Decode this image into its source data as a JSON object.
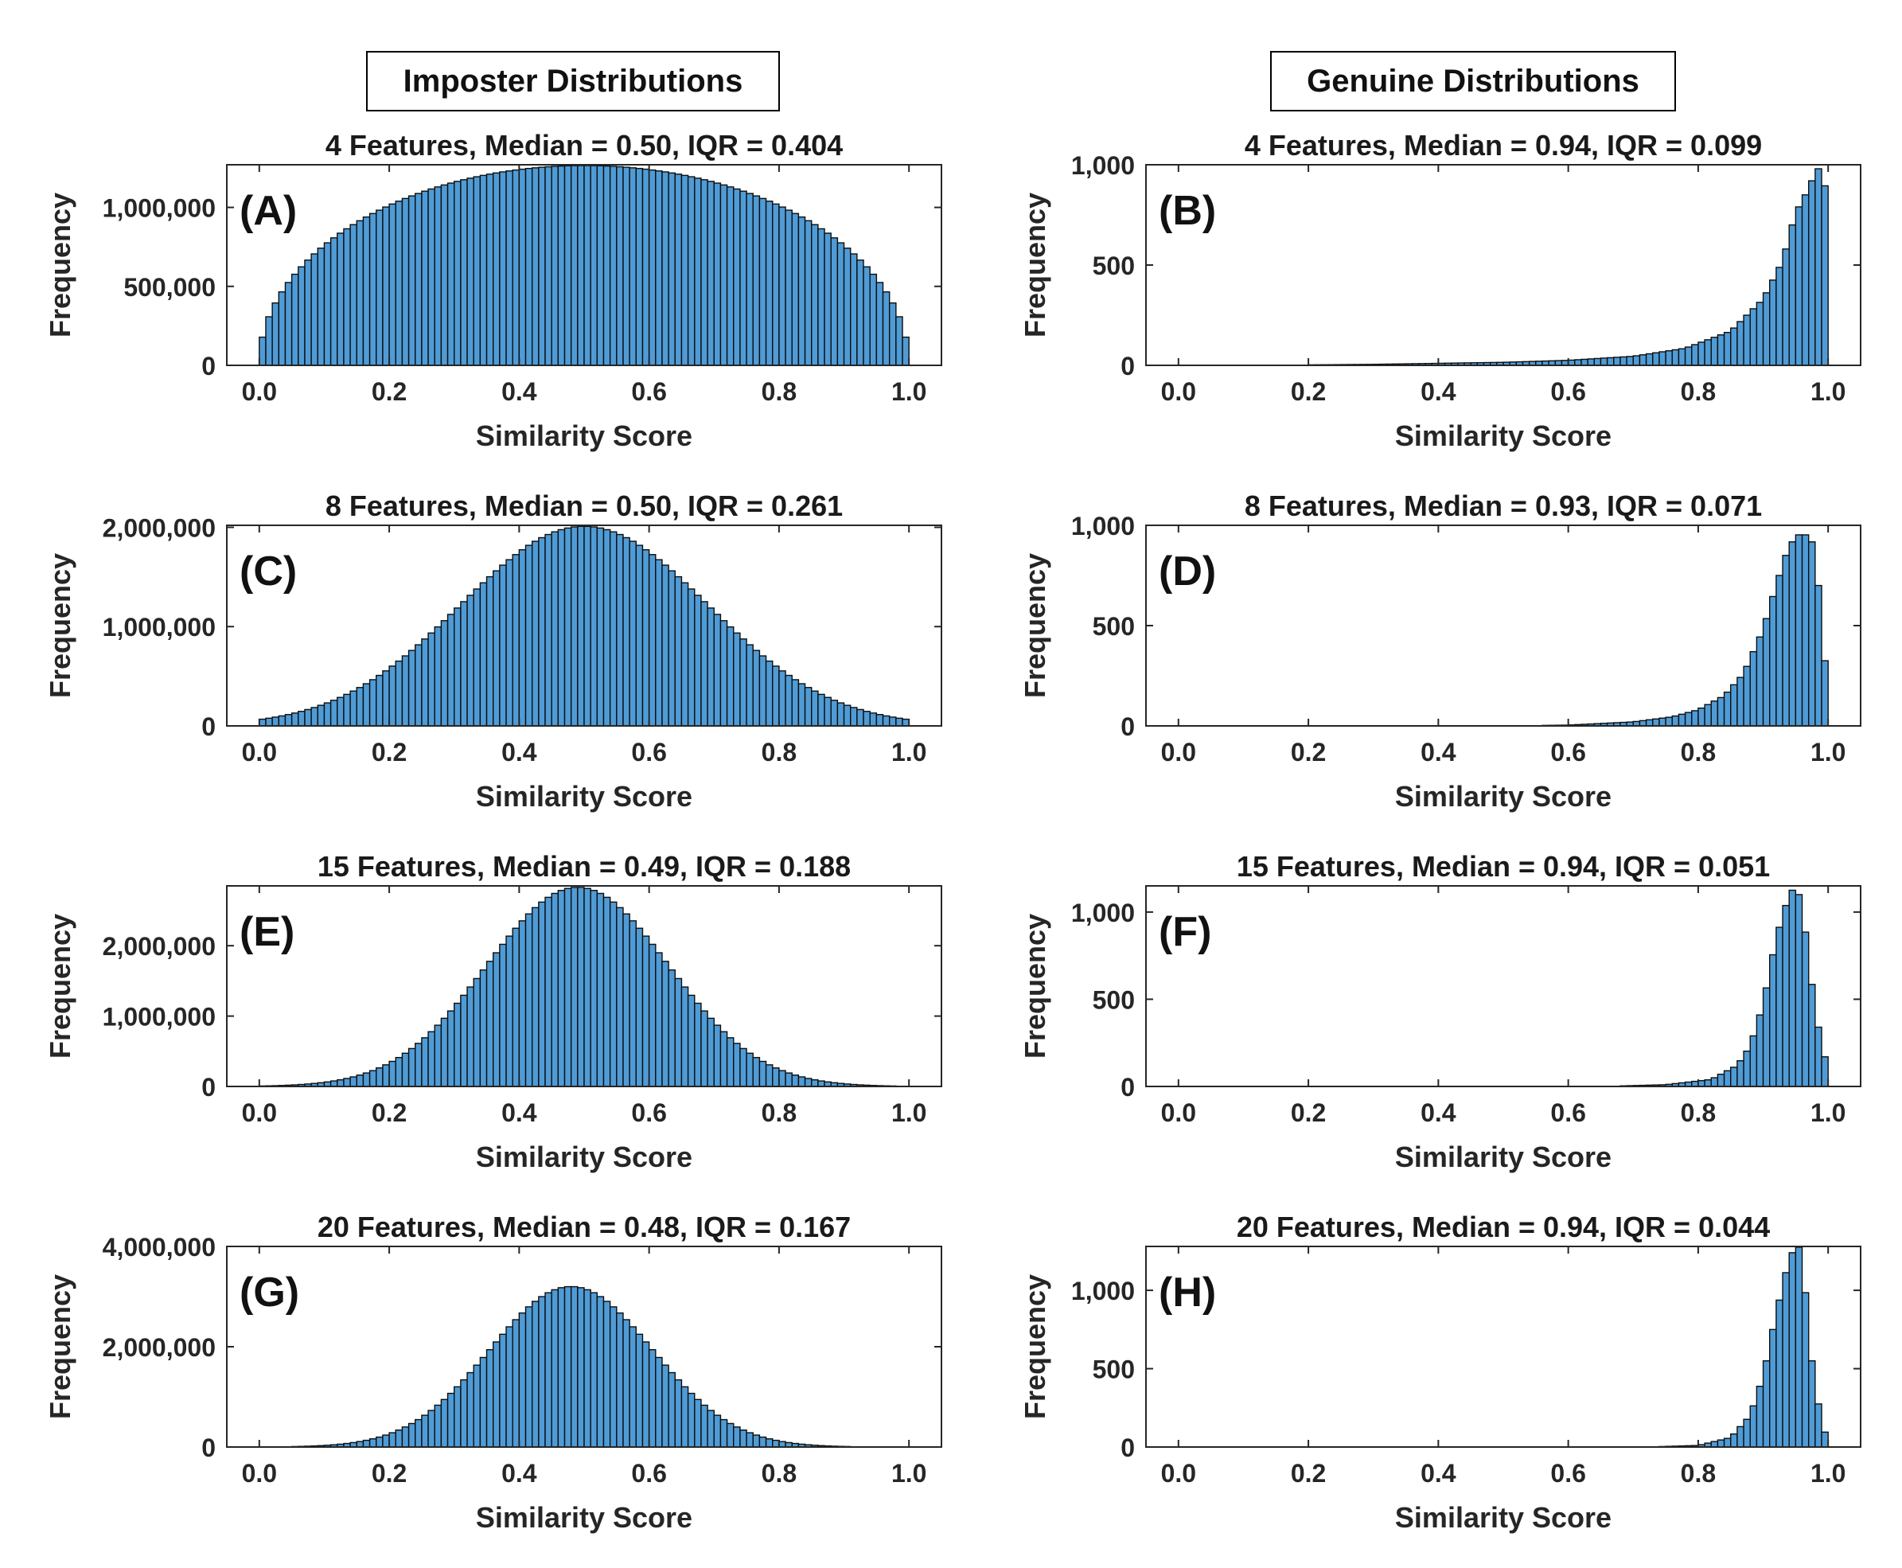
{
  "column_headers": {
    "left": "Imposter Distributions",
    "right": "Genuine Distributions"
  },
  "colors": {
    "bar_fill": "#4f9bd6",
    "bar_edge": "#0d0d0d",
    "axes": "#262626"
  },
  "chart_data": [
    {
      "type": "bar",
      "panel": "(A)",
      "column": "imposter",
      "title": "4 Features, Median = 0.50, IQR = 0.404",
      "xlabel": "Similarity Score",
      "ylabel": "Frequency",
      "xlim": [
        -0.05,
        1.05
      ],
      "ylim": [
        0,
        1270000
      ],
      "grid": false,
      "xticks": [
        0,
        0.2,
        0.4,
        0.6,
        0.8,
        1
      ],
      "xtick_labels": [
        "0.0",
        "0.2",
        "0.4",
        "0.6",
        "0.8",
        "1.0"
      ],
      "yticks": [
        0,
        500000,
        1000000
      ],
      "ytick_labels": [
        "0",
        "500,000",
        "1,000,000"
      ],
      "bins": {
        "start": 0.0,
        "end": 1.0,
        "count": 100
      },
      "shape": {
        "kind": "semicircle",
        "peak": 1265000
      }
    },
    {
      "type": "bar",
      "panel": "(B)",
      "column": "genuine",
      "title": "4 Features, Median = 0.94, IQR = 0.099",
      "xlabel": "Similarity Score",
      "ylabel": "Frequency",
      "xlim": [
        -0.05,
        1.05
      ],
      "ylim": [
        0,
        1000
      ],
      "grid": false,
      "xticks": [
        0,
        0.2,
        0.4,
        0.6,
        0.8,
        1
      ],
      "xtick_labels": [
        "0.0",
        "0.2",
        "0.4",
        "0.6",
        "0.8",
        "1.0"
      ],
      "yticks": [
        0,
        500,
        1000
      ],
      "ytick_labels": [
        "0",
        "500",
        "1,000"
      ],
      "bins": {
        "start": 0.0,
        "end": 1.0,
        "count": 100
      },
      "shape": {
        "kind": "tail",
        "points": [
          [
            0.15,
            1
          ],
          [
            0.3,
            5
          ],
          [
            0.5,
            15
          ],
          [
            0.6,
            25
          ],
          [
            0.7,
            45
          ],
          [
            0.78,
            85
          ],
          [
            0.85,
            170
          ],
          [
            0.9,
            330
          ],
          [
            0.93,
            520
          ],
          [
            0.95,
            760
          ],
          [
            0.97,
            880
          ],
          [
            0.98,
            960
          ],
          [
            0.99,
            1000
          ],
          [
            1.0,
            790
          ]
        ]
      }
    },
    {
      "type": "bar",
      "panel": "(C)",
      "column": "imposter",
      "title": "8 Features, Median = 0.50, IQR = 0.261",
      "xlabel": "Similarity Score",
      "ylabel": "Frequency",
      "xlim": [
        -0.05,
        1.05
      ],
      "ylim": [
        0,
        2020000
      ],
      "grid": false,
      "xticks": [
        0,
        0.2,
        0.4,
        0.6,
        0.8,
        1
      ],
      "xtick_labels": [
        "0.0",
        "0.2",
        "0.4",
        "0.6",
        "0.8",
        "1.0"
      ],
      "yticks": [
        0,
        1000000,
        2000000
      ],
      "ytick_labels": [
        "0",
        "1,000,000",
        "2,000,000"
      ],
      "bins": {
        "start": 0.0,
        "end": 1.0,
        "count": 100
      },
      "shape": {
        "kind": "gauss",
        "peak": 2010000,
        "mu": 0.5,
        "sigma": 0.19
      }
    },
    {
      "type": "bar",
      "panel": "(D)",
      "column": "genuine",
      "title": "8 Features, Median = 0.93, IQR = 0.071",
      "xlabel": "Similarity Score",
      "ylabel": "Frequency",
      "xlim": [
        -0.05,
        1.05
      ],
      "ylim": [
        0,
        1000
      ],
      "grid": false,
      "xticks": [
        0,
        0.2,
        0.4,
        0.6,
        0.8,
        1
      ],
      "xtick_labels": [
        "0.0",
        "0.2",
        "0.4",
        "0.6",
        "0.8",
        "1.0"
      ],
      "yticks": [
        0,
        500,
        1000
      ],
      "ytick_labels": [
        "0",
        "500",
        "1,000"
      ],
      "bins": {
        "start": 0.0,
        "end": 1.0,
        "count": 100
      },
      "shape": {
        "kind": "tail",
        "points": [
          [
            0.5,
            0
          ],
          [
            0.6,
            4
          ],
          [
            0.7,
            20
          ],
          [
            0.76,
            45
          ],
          [
            0.8,
            80
          ],
          [
            0.84,
            150
          ],
          [
            0.87,
            260
          ],
          [
            0.9,
            480
          ],
          [
            0.92,
            700
          ],
          [
            0.94,
            900
          ],
          [
            0.96,
            970
          ],
          [
            0.98,
            900
          ],
          [
            0.99,
            500
          ],
          [
            1.0,
            150
          ]
        ]
      }
    },
    {
      "type": "bar",
      "panel": "(E)",
      "column": "imposter",
      "title": "15 Features, Median = 0.49, IQR = 0.188",
      "xlabel": "Similarity Score",
      "ylabel": "Frequency",
      "xlim": [
        -0.05,
        1.05
      ],
      "ylim": [
        0,
        2850000
      ],
      "grid": false,
      "xticks": [
        0,
        0.2,
        0.4,
        0.6,
        0.8,
        1
      ],
      "xtick_labels": [
        "0.0",
        "0.2",
        "0.4",
        "0.6",
        "0.8",
        "1.0"
      ],
      "yticks": [
        0,
        1000000,
        2000000
      ],
      "ytick_labels": [
        "0",
        "1,000,000",
        "2,000,000"
      ],
      "bins": {
        "start": 0.0,
        "end": 1.0,
        "count": 100
      },
      "shape": {
        "kind": "gauss",
        "peak": 2830000,
        "mu": 0.49,
        "sigma": 0.14
      }
    },
    {
      "type": "bar",
      "panel": "(F)",
      "column": "genuine",
      "title": "15 Features, Median = 0.94, IQR = 0.051",
      "xlabel": "Similarity Score",
      "ylabel": "Frequency",
      "xlim": [
        -0.05,
        1.05
      ],
      "ylim": [
        0,
        1150
      ],
      "grid": false,
      "xticks": [
        0,
        0.2,
        0.4,
        0.6,
        0.8,
        1
      ],
      "xtick_labels": [
        "0.0",
        "0.2",
        "0.4",
        "0.6",
        "0.8",
        "1.0"
      ],
      "yticks": [
        0,
        500,
        1000
      ],
      "ytick_labels": [
        "0",
        "500",
        "1,000"
      ],
      "bins": {
        "start": 0.0,
        "end": 1.0,
        "count": 100
      },
      "shape": {
        "kind": "tail",
        "points": [
          [
            0.65,
            0
          ],
          [
            0.75,
            10
          ],
          [
            0.82,
            40
          ],
          [
            0.86,
            120
          ],
          [
            0.88,
            230
          ],
          [
            0.9,
            470
          ],
          [
            0.92,
            850
          ],
          [
            0.94,
            1100
          ],
          [
            0.95,
            1150
          ],
          [
            0.96,
            1050
          ],
          [
            0.97,
            720
          ],
          [
            0.98,
            450
          ],
          [
            0.99,
            230
          ],
          [
            1.0,
            110
          ]
        ]
      }
    },
    {
      "type": "bar",
      "panel": "(G)",
      "column": "imposter",
      "title": "20 Features, Median = 0.48, IQR = 0.167",
      "xlabel": "Similarity Score",
      "ylabel": "Frequency",
      "xlim": [
        -0.05,
        1.05
      ],
      "ylim": [
        0,
        4000000
      ],
      "grid": false,
      "xticks": [
        0,
        0.2,
        0.4,
        0.6,
        0.8,
        1
      ],
      "xtick_labels": [
        "0.0",
        "0.2",
        "0.4",
        "0.6",
        "0.8",
        "1.0"
      ],
      "yticks": [
        0,
        2000000,
        4000000
      ],
      "ytick_labels": [
        "0",
        "2,000,000",
        "4,000,000"
      ],
      "bins": {
        "start": 0.0,
        "end": 1.0,
        "count": 100
      },
      "shape": {
        "kind": "gauss",
        "peak": 3200000,
        "mu": 0.48,
        "sigma": 0.125
      }
    },
    {
      "type": "bar",
      "panel": "(H)",
      "column": "genuine",
      "title": "20 Features, Median = 0.94, IQR = 0.044",
      "xlabel": "Similarity Score",
      "ylabel": "Frequency",
      "xlim": [
        -0.05,
        1.05
      ],
      "ylim": [
        0,
        1280
      ],
      "grid": false,
      "xticks": [
        0,
        0.2,
        0.4,
        0.6,
        0.8,
        1
      ],
      "xtick_labels": [
        "0.0",
        "0.2",
        "0.4",
        "0.6",
        "0.8",
        "1.0"
      ],
      "yticks": [
        0,
        500,
        1000
      ],
      "ytick_labels": [
        "0",
        "500",
        "1,000"
      ],
      "bins": {
        "start": 0.0,
        "end": 1.0,
        "count": 100
      },
      "shape": {
        "kind": "tail",
        "points": [
          [
            0.72,
            0
          ],
          [
            0.8,
            10
          ],
          [
            0.85,
            60
          ],
          [
            0.88,
            200
          ],
          [
            0.9,
            450
          ],
          [
            0.92,
            850
          ],
          [
            0.94,
            1200
          ],
          [
            0.95,
            1280
          ],
          [
            0.96,
            1270
          ],
          [
            0.97,
            700
          ],
          [
            0.98,
            400
          ],
          [
            0.99,
            150
          ],
          [
            1.0,
            40
          ]
        ]
      }
    }
  ]
}
